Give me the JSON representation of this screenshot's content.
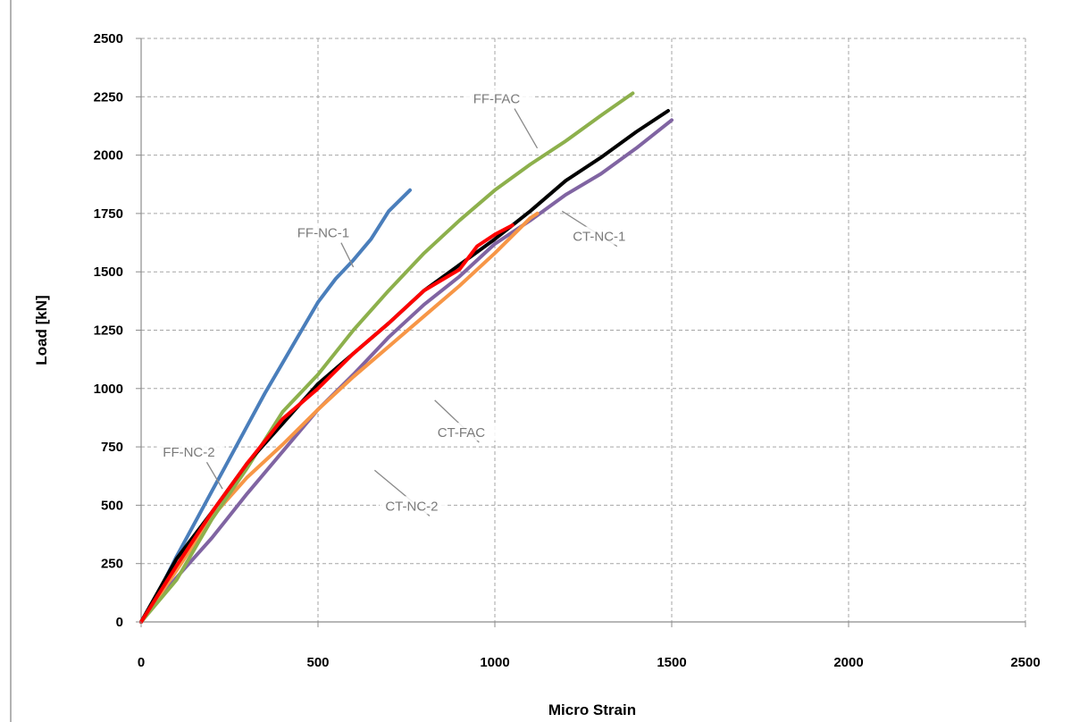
{
  "chart_data": {
    "type": "line",
    "title": "",
    "xlabel": "Micro Strain",
    "ylabel": "Load [kN]",
    "xlim": [
      0,
      2500
    ],
    "ylim": [
      0,
      2500
    ],
    "xticks": [
      "0",
      "500",
      "1000",
      "1500",
      "2000",
      "2500"
    ],
    "yticks": [
      "0",
      "250",
      "500",
      "750",
      "1000",
      "1250",
      "1500",
      "1750",
      "2000",
      "2250",
      "2500"
    ],
    "grid": true,
    "series": [
      {
        "name": "FF-NC-1",
        "color": "#4a7ebb",
        "points": [
          [
            0,
            0
          ],
          [
            50,
            130
          ],
          [
            100,
            280
          ],
          [
            150,
            420
          ],
          [
            200,
            560
          ],
          [
            250,
            700
          ],
          [
            300,
            840
          ],
          [
            350,
            980
          ],
          [
            400,
            1110
          ],
          [
            450,
            1240
          ],
          [
            500,
            1370
          ],
          [
            550,
            1470
          ],
          [
            600,
            1550
          ],
          [
            650,
            1640
          ],
          [
            700,
            1760
          ],
          [
            760,
            1850
          ]
        ]
      },
      {
        "name": "FF-FAC",
        "color": "#8db04c",
        "points": [
          [
            0,
            0
          ],
          [
            100,
            180
          ],
          [
            200,
            440
          ],
          [
            300,
            660
          ],
          [
            400,
            900
          ],
          [
            500,
            1060
          ],
          [
            600,
            1250
          ],
          [
            700,
            1420
          ],
          [
            800,
            1580
          ],
          [
            900,
            1720
          ],
          [
            1000,
            1850
          ],
          [
            1100,
            1960
          ],
          [
            1200,
            2060
          ],
          [
            1300,
            2170
          ],
          [
            1390,
            2265
          ]
        ]
      },
      {
        "name": "CT-NC-1",
        "color": "#000000",
        "points": [
          [
            0,
            0
          ],
          [
            100,
            270
          ],
          [
            200,
            470
          ],
          [
            300,
            680
          ],
          [
            400,
            850
          ],
          [
            500,
            1020
          ],
          [
            600,
            1150
          ],
          [
            700,
            1280
          ],
          [
            800,
            1420
          ],
          [
            900,
            1530
          ],
          [
            1000,
            1640
          ],
          [
            1100,
            1760
          ],
          [
            1200,
            1890
          ],
          [
            1300,
            1990
          ],
          [
            1400,
            2100
          ],
          [
            1490,
            2190
          ]
        ]
      },
      {
        "name": "FF-NC-2",
        "color": "#ff0000",
        "points": [
          [
            0,
            0
          ],
          [
            100,
            240
          ],
          [
            200,
            470
          ],
          [
            300,
            680
          ],
          [
            400,
            870
          ],
          [
            500,
            1000
          ],
          [
            600,
            1150
          ],
          [
            700,
            1280
          ],
          [
            800,
            1420
          ],
          [
            900,
            1510
          ],
          [
            950,
            1610
          ],
          [
            1000,
            1660
          ],
          [
            1050,
            1700
          ]
        ]
      },
      {
        "name": "CT-FAC",
        "color": "#f79646",
        "points": [
          [
            0,
            0
          ],
          [
            100,
            220
          ],
          [
            200,
            450
          ],
          [
            300,
            620
          ],
          [
            400,
            760
          ],
          [
            500,
            910
          ],
          [
            600,
            1050
          ],
          [
            700,
            1180
          ],
          [
            800,
            1310
          ],
          [
            900,
            1440
          ],
          [
            1000,
            1580
          ],
          [
            1100,
            1730
          ],
          [
            1120,
            1750
          ]
        ]
      },
      {
        "name": "CT-NC-2",
        "color": "#8064a2",
        "points": [
          [
            0,
            0
          ],
          [
            100,
            190
          ],
          [
            200,
            360
          ],
          [
            300,
            550
          ],
          [
            400,
            730
          ],
          [
            500,
            910
          ],
          [
            600,
            1060
          ],
          [
            700,
            1220
          ],
          [
            800,
            1360
          ],
          [
            900,
            1480
          ],
          [
            1000,
            1620
          ],
          [
            1100,
            1720
          ],
          [
            1200,
            1830
          ],
          [
            1300,
            1920
          ],
          [
            1400,
            2030
          ],
          [
            1500,
            2150
          ]
        ]
      }
    ],
    "annotations": [
      {
        "text": "FF-NC-1",
        "x": 515,
        "y": 1655,
        "pointer_to": [
          600,
          1520
        ]
      },
      {
        "text": "FF-FAC",
        "x": 1005,
        "y": 2230,
        "pointer_to": [
          1120,
          2030
        ]
      },
      {
        "text": "CT-NC-1",
        "x": 1295,
        "y": 1640,
        "pointer_to": [
          1190,
          1760
        ]
      },
      {
        "text": "CT-FAC",
        "x": 905,
        "y": 800,
        "pointer_to": [
          830,
          950
        ]
      },
      {
        "text": "FF-NC-2",
        "x": 135,
        "y": 715,
        "pointer_to": [
          230,
          570
        ]
      },
      {
        "text": "CT-NC-2",
        "x": 765,
        "y": 485,
        "pointer_to": [
          660,
          650
        ]
      }
    ]
  }
}
